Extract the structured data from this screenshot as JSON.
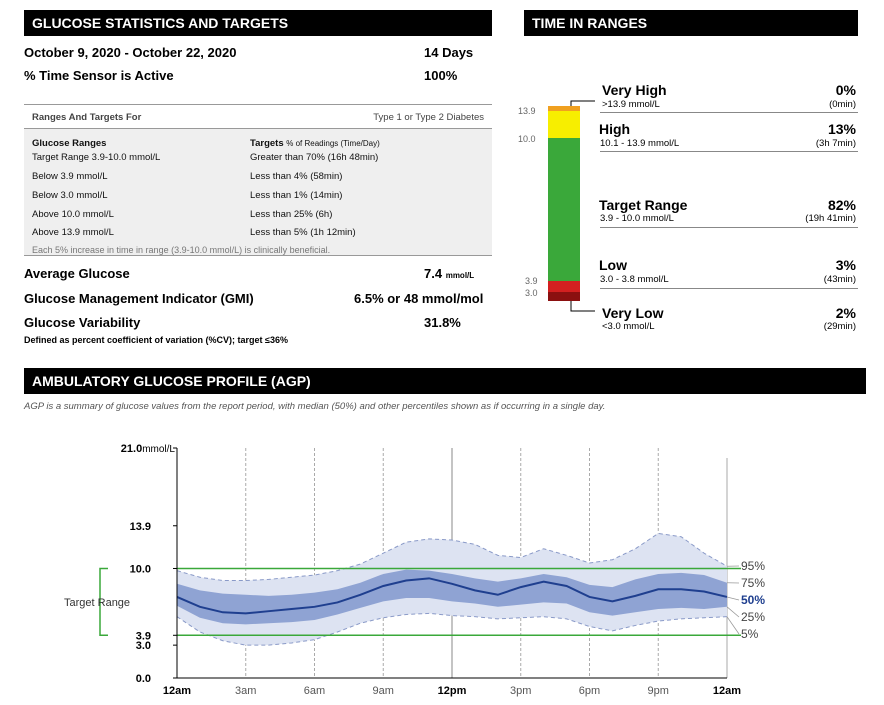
{
  "stats": {
    "header": "GLUCOSE STATISTICS AND TARGETS",
    "date_range": "October 9, 2020 - October 22, 2020",
    "days": "14 Days",
    "sensor_active_label": "% Time Sensor is Active",
    "sensor_active_value": "100%",
    "ranges_for_label": "Ranges And Targets For",
    "diabetes_type": "Type 1 or Type 2 Diabetes",
    "col1_header": "Glucose Ranges",
    "col2_header": "Targets",
    "col2_header_sub": "% of Readings (Time/Day)",
    "rows": [
      {
        "range": "Target Range 3.9-10.0 mmol/L",
        "target": "Greater than 70% (16h 48min)"
      },
      {
        "range": "Below 3.9 mmol/L",
        "target": "Less than 4% (58min)"
      },
      {
        "range": "Below 3.0 mmol/L",
        "target": "Less than 1% (14min)"
      },
      {
        "range": "Above 10.0 mmol/L",
        "target": "Less than 25% (6h)"
      },
      {
        "range": "Above 13.9 mmol/L",
        "target": "Less than 5% (1h 12min)"
      }
    ],
    "footnote": "Each 5% increase in time in range (3.9-10.0 mmol/L) is clinically beneficial.",
    "avg_label": "Average Glucose",
    "avg_value": "7.4",
    "avg_unit": "mmol/L",
    "gmi_label": "Glucose Management Indicator (GMI)",
    "gmi_value": "6.5% or 48 mmol/mol",
    "var_label": "Glucose Variability",
    "var_value": "31.8%",
    "var_note": "Defined as percent coefficient of variation (%CV); target ≤36%"
  },
  "tir": {
    "header": "TIME IN RANGES",
    "axis_labels": [
      "13.9",
      "10.0",
      "3.9",
      "3.0"
    ],
    "colors": {
      "very_high": "#f0a020",
      "high": "#f7ee00",
      "target": "#3aa83a",
      "low": "#d32020",
      "very_low": "#8b1010"
    },
    "ranges": [
      {
        "name": "Very High",
        "sub": ">13.9 mmol/L",
        "pct": "0%",
        "time": "(0min)"
      },
      {
        "name": "High",
        "sub": "10.1 - 13.9 mmol/L",
        "pct": "13%",
        "time": "(3h 7min)"
      },
      {
        "name": "Target Range",
        "sub": "3.9 - 10.0 mmol/L",
        "pct": "82%",
        "time": "(19h 41min)"
      },
      {
        "name": "Low",
        "sub": "3.0 - 3.8 mmol/L",
        "pct": "3%",
        "time": "(43min)"
      },
      {
        "name": "Very Low",
        "sub": "<3.0 mmol/L",
        "pct": "2%",
        "time": "(29min)"
      }
    ]
  },
  "agp": {
    "header": "AMBULATORY GLUCOSE PROFILE (AGP)",
    "note": "AGP is a summary of glucose values from the report period, with median (50%) and other percentiles shown as if occurring in a single day.",
    "target_range_label": "Target Range",
    "y_top_label": "21.0",
    "y_top_unit": "mmol/L",
    "y_ticks": [
      "13.9",
      "10.0",
      "3.9",
      "3.0",
      "0.0"
    ],
    "x_ticks": [
      "12am",
      "3am",
      "6am",
      "9am",
      "12pm",
      "3pm",
      "6pm",
      "9pm",
      "12am"
    ],
    "percentile_labels": [
      "95%",
      "75%",
      "50%",
      "25%",
      "5%"
    ]
  },
  "chart_data": {
    "type": "area",
    "x": [
      0,
      1,
      2,
      3,
      4,
      5,
      6,
      7,
      8,
      9,
      10,
      11,
      12,
      13,
      14,
      15,
      16,
      17,
      18,
      19,
      20,
      21,
      22,
      23,
      24
    ],
    "x_tick_labels": [
      "12am",
      "3am",
      "6am",
      "9am",
      "12pm",
      "3pm",
      "6pm",
      "9pm",
      "12am"
    ],
    "ylim": [
      0,
      21
    ],
    "y_ticks": [
      0,
      3.0,
      3.9,
      10.0,
      13.9,
      21.0
    ],
    "target_range": [
      3.9,
      10.0
    ],
    "series": [
      {
        "name": "95%",
        "values": [
          9.8,
          9.2,
          8.9,
          8.9,
          9.0,
          9.2,
          9.4,
          9.8,
          10.4,
          11.4,
          12.4,
          12.7,
          12.6,
          12.2,
          11.2,
          11.0,
          11.8,
          11.2,
          10.5,
          10.8,
          11.8,
          13.2,
          12.9,
          11.4,
          10.2
        ]
      },
      {
        "name": "75%",
        "values": [
          8.6,
          8.0,
          7.7,
          7.6,
          7.5,
          7.6,
          7.8,
          8.1,
          8.7,
          9.5,
          9.9,
          9.8,
          9.5,
          9.1,
          8.8,
          9.1,
          9.5,
          9.2,
          8.5,
          8.3,
          9.0,
          9.5,
          9.6,
          9.4,
          8.7
        ]
      },
      {
        "name": "50%",
        "values": [
          7.4,
          6.5,
          6.0,
          5.9,
          6.1,
          6.3,
          6.5,
          6.9,
          7.6,
          8.4,
          8.9,
          9.1,
          8.6,
          8.0,
          7.6,
          8.3,
          8.8,
          8.4,
          7.4,
          7.0,
          7.5,
          8.1,
          8.1,
          7.9,
          7.4
        ]
      },
      {
        "name": "25%",
        "values": [
          6.6,
          5.5,
          5.0,
          4.9,
          5.0,
          5.1,
          5.3,
          5.8,
          6.4,
          7.0,
          7.3,
          7.3,
          7.0,
          6.8,
          6.5,
          6.7,
          6.9,
          6.8,
          6.0,
          5.7,
          6.0,
          6.3,
          6.4,
          6.3,
          6.5
        ]
      },
      {
        "name": "5%",
        "values": [
          5.6,
          4.2,
          3.4,
          3.0,
          3.0,
          3.2,
          3.5,
          4.2,
          5.0,
          5.5,
          5.8,
          5.9,
          5.7,
          5.6,
          5.4,
          5.5,
          5.6,
          5.4,
          4.7,
          4.3,
          4.8,
          5.2,
          5.4,
          5.5,
          5.6
        ]
      }
    ]
  }
}
